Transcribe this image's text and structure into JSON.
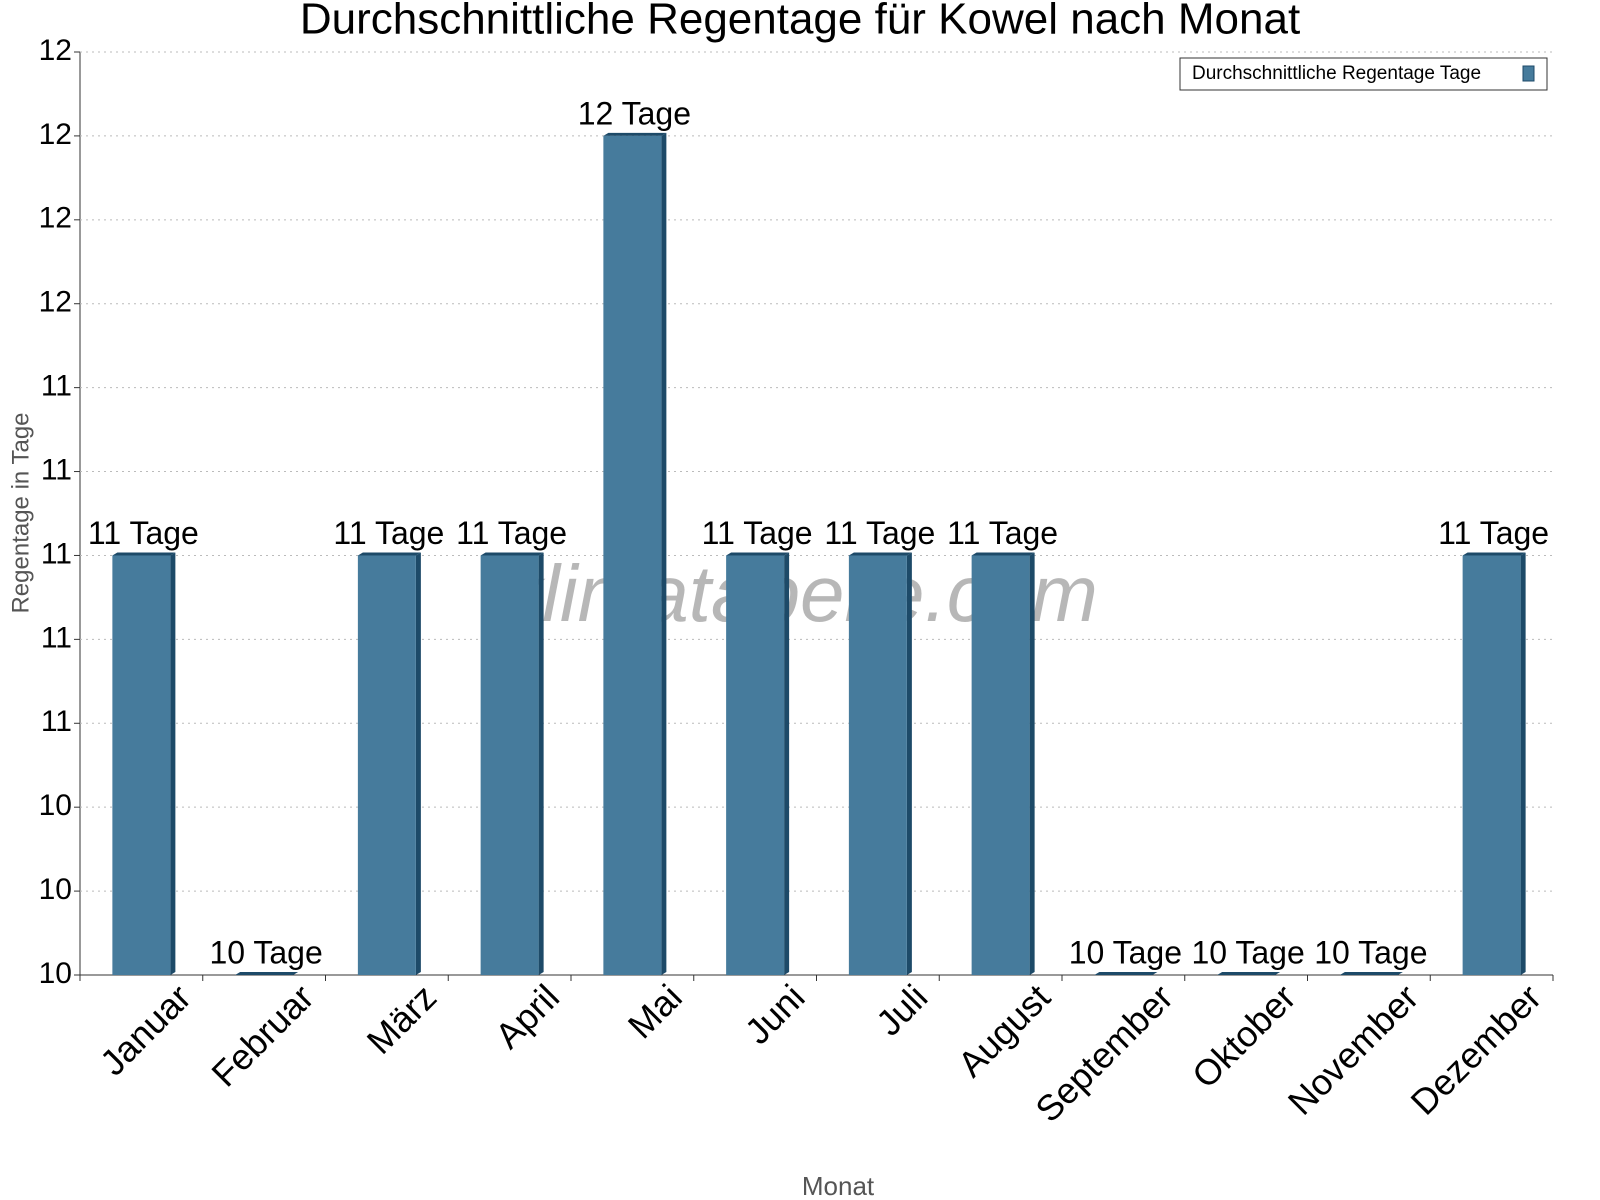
{
  "chart_data": {
    "type": "bar",
    "title": "Durchschnittliche Regentage für Kowel nach Monat",
    "x_label": "Monat",
    "y_label": "Regentage in Tage",
    "watermark": "klimatabelle.com",
    "categories": [
      "Januar",
      "Februar",
      "März",
      "April",
      "Mai",
      "Juni",
      "Juli",
      "August",
      "September",
      "Oktober",
      "November",
      "Dezember"
    ],
    "series": [
      {
        "name": "Durchschnittliche Regentage Tage",
        "color": "#467b9c",
        "values": [
          11,
          10,
          11,
          11,
          12,
          11,
          11,
          11,
          10,
          10,
          10,
          11
        ],
        "value_labels": [
          "11 Tage",
          "10 Tage",
          "11 Tage",
          "11 Tage",
          "12 Tage",
          "11 Tage",
          "11 Tage",
          "11 Tage",
          "10 Tage",
          "10 Tage",
          "10 Tage",
          "11 Tage"
        ]
      }
    ],
    "ylim": [
      10,
      12.2
    ],
    "yticks": [
      10,
      {
        "value": 10.2,
        "label": "10"
      },
      {
        "value": 10.4,
        "label": "10"
      },
      {
        "value": 10.6,
        "label": "11"
      },
      {
        "value": 10.8,
        "label": "11"
      },
      11,
      {
        "value": 11.2,
        "label": "11"
      },
      {
        "value": 11.4,
        "label": "11"
      },
      {
        "value": 11.6,
        "label": "12"
      },
      {
        "value": 11.8,
        "label": "12"
      },
      12,
      {
        "value": 12.2,
        "label": "12"
      }
    ],
    "grid": true,
    "legend": "top-right"
  }
}
